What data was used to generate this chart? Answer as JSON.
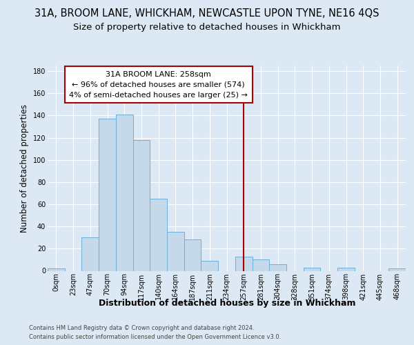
{
  "title": "31A, BROOM LANE, WHICKHAM, NEWCASTLE UPON TYNE, NE16 4QS",
  "subtitle": "Size of property relative to detached houses in Whickham",
  "xlabel": "Distribution of detached houses by size in Whickham",
  "ylabel": "Number of detached properties",
  "footer_line1": "Contains HM Land Registry data © Crown copyright and database right 2024.",
  "footer_line2": "Contains public sector information licensed under the Open Government Licence v3.0.",
  "bin_labels": [
    "0sqm",
    "23sqm",
    "47sqm",
    "70sqm",
    "94sqm",
    "117sqm",
    "140sqm",
    "164sqm",
    "187sqm",
    "211sqm",
    "234sqm",
    "257sqm",
    "281sqm",
    "304sqm",
    "328sqm",
    "351sqm",
    "374sqm",
    "398sqm",
    "421sqm",
    "445sqm",
    "468sqm"
  ],
  "bar_heights": [
    2,
    0,
    30,
    137,
    141,
    118,
    65,
    35,
    28,
    9,
    0,
    13,
    10,
    6,
    0,
    3,
    0,
    3,
    0,
    0,
    2
  ],
  "bar_color": "#c5d9eb",
  "bar_edge_color": "#6aaed6",
  "background_color": "#dce8f4",
  "grid_color": "#ffffff",
  "vline_x_index": 11,
  "vline_color": "#aa0000",
  "annotation_text": "31A BROOM LANE: 258sqm\n← 96% of detached houses are smaller (574)\n4% of semi-detached houses are larger (25) →",
  "annotation_box_facecolor": "#ffffff",
  "annotation_box_edgecolor": "#aa0000",
  "ylim": [
    0,
    185
  ],
  "yticks": [
    0,
    20,
    40,
    60,
    80,
    100,
    120,
    140,
    160,
    180
  ],
  "title_fontsize": 10.5,
  "subtitle_fontsize": 9.5,
  "xlabel_fontsize": 9,
  "ylabel_fontsize": 8.5,
  "tick_fontsize": 7,
  "annotation_fontsize": 8,
  "footer_fontsize": 6,
  "footer_color": "#444444"
}
